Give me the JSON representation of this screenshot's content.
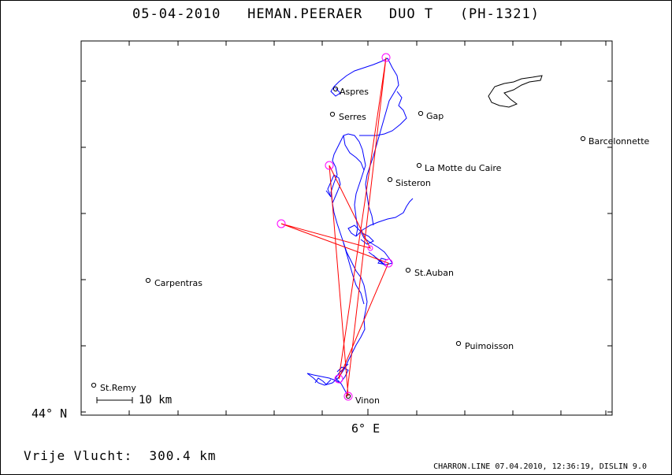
{
  "header": {
    "date": "05-04-2010",
    "pilot": "HEMAN.PEERAER",
    "glider": "DUO T",
    "registration": "(PH-1321)"
  },
  "axes": {
    "lat_label": "44° N",
    "lon_label": "6° E"
  },
  "scale": {
    "label": "10 km"
  },
  "distance": {
    "label": "Vrije Vlucht:",
    "value": "300.4 km"
  },
  "footer": "CHARRON.LINE 07.04.2010, 12:36:19, DISLIN 9.0",
  "places": {
    "aspres": "Aspres",
    "serres": "Serres",
    "gap": "Gap",
    "barcelonnette": "Barcelonnette",
    "la_motte": "La Motte du Caire",
    "sisteron": "Sisteron",
    "st_auban": "St.Auban",
    "carpentras": "Carpentras",
    "puimoisson": "Puimoisson",
    "st_remy": "St.Remy",
    "vinon": "Vinon"
  },
  "colors": {
    "track": "#0000ff",
    "task": "#ff0000",
    "turnpoint": "#ff00ff",
    "frame": "#000000"
  }
}
